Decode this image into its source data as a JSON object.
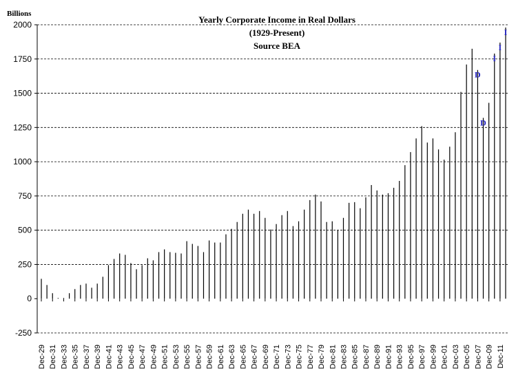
{
  "chart_data": {
    "type": "bar",
    "title": "Yearly Corporate Income in Real Dollars",
    "subtitle": "(1929-Present)",
    "source": "Source BEA",
    "ylabel": "Billions",
    "ylim": [
      -250,
      2000
    ],
    "yticks": [
      -250,
      0,
      250,
      500,
      750,
      1000,
      1250,
      1500,
      1750,
      2000
    ],
    "gridlines": "horizontal-dashed",
    "categories": [
      "Dec-29",
      "Dec-30",
      "Dec-31",
      "Dec-32",
      "Dec-33",
      "Dec-34",
      "Dec-35",
      "Dec-36",
      "Dec-37",
      "Dec-38",
      "Dec-39",
      "Dec-40",
      "Dec-41",
      "Dec-42",
      "Dec-43",
      "Dec-44",
      "Dec-45",
      "Dec-46",
      "Dec-47",
      "Dec-48",
      "Dec-49",
      "Dec-50",
      "Dec-51",
      "Dec-52",
      "Dec-53",
      "Dec-54",
      "Dec-55",
      "Dec-56",
      "Dec-57",
      "Dec-58",
      "Dec-59",
      "Dec-60",
      "Dec-61",
      "Dec-62",
      "Dec-63",
      "Dec-64",
      "Dec-65",
      "Dec-66",
      "Dec-67",
      "Dec-68",
      "Dec-69",
      "Dec-70",
      "Dec-71",
      "Dec-72",
      "Dec-73",
      "Dec-74",
      "Dec-75",
      "Dec-76",
      "Dec-77",
      "Dec-78",
      "Dec-79",
      "Dec-80",
      "Dec-81",
      "Dec-82",
      "Dec-83",
      "Dec-84",
      "Dec-85",
      "Dec-86",
      "Dec-87",
      "Dec-88",
      "Dec-89",
      "Dec-90",
      "Dec-91",
      "Dec-92",
      "Dec-93",
      "Dec-94",
      "Dec-95",
      "Dec-96",
      "Dec-97",
      "Dec-98",
      "Dec-99",
      "Dec-00",
      "Dec-01",
      "Dec-02",
      "Dec-03",
      "Dec-04",
      "Dec-05",
      "Dec-06",
      "Dec-07",
      "Dec-08",
      "Dec-09",
      "Dec-10",
      "Dec-11",
      "Dec-12"
    ],
    "tick_labels_shown": [
      "Dec-29",
      "Dec-31",
      "Dec-33",
      "Dec-35",
      "Dec-37",
      "Dec-39",
      "Dec-41",
      "Dec-43",
      "Dec-45",
      "Dec-47",
      "Dec-49",
      "Dec-51",
      "Dec-53",
      "Dec-55",
      "Dec-57",
      "Dec-59",
      "Dec-61",
      "Dec-63",
      "Dec-65",
      "Dec-67",
      "Dec-69",
      "Dec-71",
      "Dec-73",
      "Dec-75",
      "Dec-77",
      "Dec-79",
      "Dec-81",
      "Dec-83",
      "Dec-85",
      "Dec-87",
      "Dec-89",
      "Dec-91",
      "Dec-93",
      "Dec-95",
      "Dec-97",
      "Dec-99",
      "Dec-01",
      "Dec-03",
      "Dec-05",
      "Dec-07",
      "Dec-09",
      "Dec-11"
    ],
    "values": [
      145,
      100,
      40,
      5,
      5,
      40,
      70,
      100,
      110,
      80,
      110,
      160,
      245,
      290,
      330,
      320,
      260,
      215,
      245,
      295,
      280,
      340,
      360,
      340,
      335,
      330,
      420,
      400,
      385,
      340,
      425,
      410,
      410,
      470,
      510,
      560,
      620,
      650,
      620,
      640,
      590,
      505,
      545,
      610,
      640,
      530,
      565,
      650,
      720,
      760,
      710,
      560,
      565,
      500,
      590,
      700,
      705,
      660,
      740,
      830,
      790,
      760,
      770,
      810,
      860,
      975,
      1070,
      1170,
      1260,
      1140,
      1170,
      1090,
      1015,
      1110,
      1215,
      1510,
      1710,
      1825,
      1670,
      1320,
      1430,
      1790,
      1870,
      1980
    ],
    "annotations": [
      {
        "text": "D",
        "category": "Dec-07"
      },
      {
        "text": "D",
        "category": "Dec-08"
      },
      {
        "text": "I",
        "category": "Dec-10"
      },
      {
        "text": "I",
        "category": "Dec-11"
      },
      {
        "text": "I",
        "category": "Dec-12"
      }
    ],
    "colors": {
      "bar": "#000000",
      "grid": "#000000",
      "annotation": "#1f1fbf"
    }
  }
}
